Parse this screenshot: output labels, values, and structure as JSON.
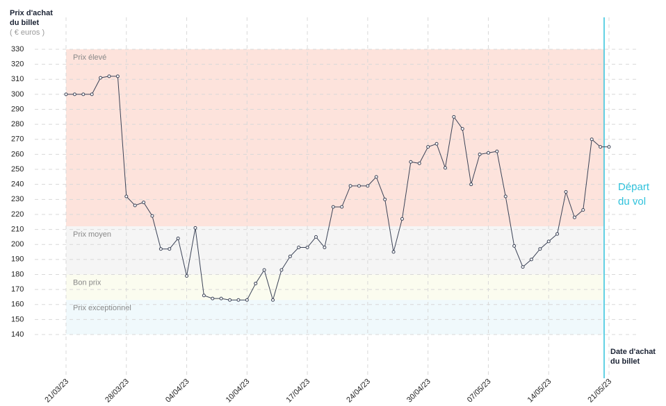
{
  "chart_data": {
    "type": "line",
    "y_title": [
      "Prix d'achat",
      "du billet"
    ],
    "y_unit": "( € euros )",
    "x_title": [
      "Date d'achat",
      "du billet"
    ],
    "departure_label": [
      "Départ",
      "du vol"
    ],
    "departure_color": "#2fc2dc",
    "categories": [
      "21/03/23",
      null,
      null,
      null,
      null,
      null,
      null,
      "28/03/23",
      null,
      null,
      null,
      null,
      null,
      null,
      "04/04/23",
      null,
      null,
      null,
      null,
      null,
      null,
      "10/04/23",
      null,
      null,
      null,
      null,
      null,
      null,
      "17/04/23",
      null,
      null,
      null,
      null,
      null,
      null,
      "24/04/23",
      null,
      null,
      null,
      null,
      null,
      null,
      "30/04/23",
      null,
      null,
      null,
      null,
      null,
      null,
      "07/05/23",
      null,
      null,
      null,
      null,
      null,
      null,
      "14/05/23",
      null,
      null,
      null,
      null,
      null,
      null,
      "21/05/23"
    ],
    "series": [
      {
        "name": "Prix",
        "color": "#3a4256",
        "values": [
          300,
          300,
          300,
          300,
          311,
          312,
          312,
          232,
          226,
          228,
          219,
          197,
          197,
          204,
          179,
          211,
          166,
          164,
          164,
          163,
          163,
          163,
          174,
          183,
          163,
          183,
          192,
          198,
          198,
          205,
          198,
          225,
          225,
          239,
          239,
          239,
          245,
          230,
          195,
          217,
          255,
          254,
          265,
          267,
          251,
          285,
          277,
          240,
          260,
          261,
          262,
          232,
          199,
          185,
          190,
          197,
          202,
          207,
          235,
          218,
          223,
          270,
          265,
          265
        ]
      }
    ],
    "bands": [
      {
        "label": "Prix élevé",
        "from": 212,
        "to": 330,
        "color": "#fde3dc"
      },
      {
        "label": "Prix moyen",
        "from": 180,
        "to": 212,
        "color": "#f5f5f5"
      },
      {
        "label": "Bon prix",
        "from": 163,
        "to": 180,
        "color": "#fbfcef"
      },
      {
        "label": "Prix exceptionnel",
        "from": 140,
        "to": 163,
        "color": "#f0f9fc"
      }
    ],
    "ylim": [
      140,
      330
    ],
    "yticks": [
      140,
      150,
      160,
      170,
      180,
      190,
      200,
      210,
      220,
      230,
      240,
      250,
      260,
      270,
      280,
      290,
      300,
      310,
      320,
      330
    ],
    "grid": true
  }
}
